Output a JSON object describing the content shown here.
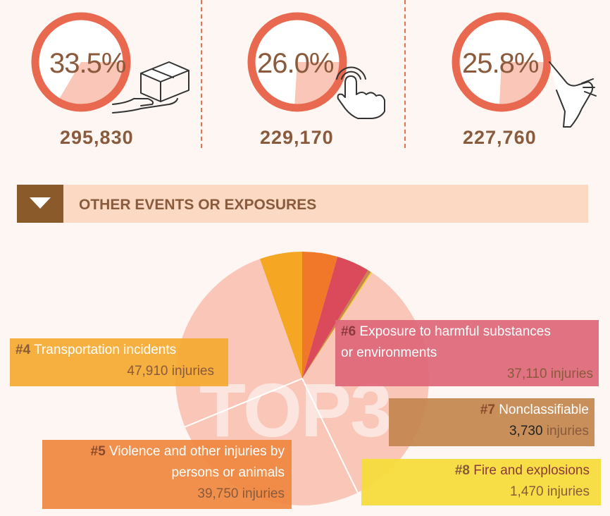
{
  "chart_data": [
    {
      "type": "pie",
      "series": [
        {
          "label": "33.5%",
          "percent": 33.5,
          "count": "295,830",
          "icon": "box-in-hands-icon"
        },
        {
          "label": "26.0%",
          "percent": 26.0,
          "count": "229,170",
          "icon": "hand-touch-icon"
        },
        {
          "label": "25.8%",
          "percent": 25.8,
          "count": "227,760",
          "icon": "injured-foot-icon"
        }
      ]
    },
    {
      "type": "pie",
      "title": "OTHER EVENTS OR EXPOSURES",
      "watermark": "TOP3",
      "slices": [
        {
          "rank": "#4",
          "name": "Transportation incidents",
          "value": 47910,
          "value_text": "47,910",
          "unit": "injuries",
          "color": "#f5a623"
        },
        {
          "rank": "#5",
          "name": "Violence and other injuries by persons or animals",
          "line1": "Violence and other injuries by",
          "line2": "persons or animals",
          "value": 39750,
          "value_text": "39,750",
          "unit": "injuries",
          "color": "#f07828"
        },
        {
          "rank": "#6",
          "name": "Exposure to harmful substances or environments",
          "line1": "Exposure to harmful substances",
          "line2": "or environments",
          "value": 37110,
          "value_text": "37,110",
          "unit": "injuries",
          "color": "#db4a5a"
        },
        {
          "rank": "#7",
          "name": "Nonclassifiable",
          "value": 3730,
          "value_text": "3,730",
          "unit": "injuries",
          "color": "#c8864f"
        },
        {
          "rank": "#8",
          "name": "Fire and explosions",
          "value": 1470,
          "value_text": "1,470",
          "unit": "injuries",
          "color": "#f0d030"
        }
      ],
      "top3_color": "#f9c6b8"
    }
  ],
  "colors": {
    "ring": "#e8694f",
    "fill": "#f9c6b8",
    "text": "#8a5a3c",
    "banner": "#fbd9c3",
    "banner_box": "#8b5a2b"
  }
}
